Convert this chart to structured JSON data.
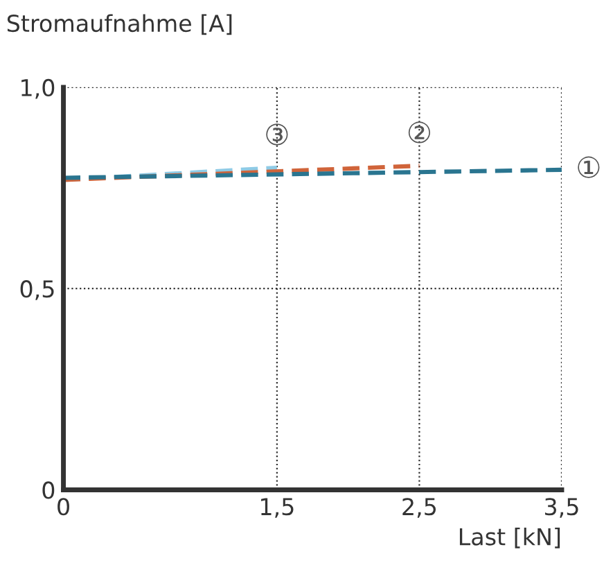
{
  "chart_data": {
    "type": "line",
    "ylabel": "Stromaufnahme [A]",
    "xlabel": "Last [kN]",
    "xlim": [
      0,
      3.5
    ],
    "xticks": [
      {
        "value": 0,
        "label": "0"
      },
      {
        "value": 1.5,
        "label": "1,5"
      },
      {
        "value": 2.5,
        "label": "2,5"
      },
      {
        "value": 3.5,
        "label": "3,5"
      }
    ],
    "ylim": [
      0,
      1.0
    ],
    "yticks": [
      {
        "value": 0,
        "label": "0"
      },
      {
        "value": 0.5,
        "label": "0,5"
      },
      {
        "value": 1.0,
        "label": "1,0"
      }
    ],
    "grid": true,
    "line_style": "dashed",
    "marker": "none",
    "legend": false,
    "series": [
      {
        "name": "①",
        "color": "#2a7590",
        "x": [
          0,
          3.5
        ],
        "values": [
          0.775,
          0.795
        ]
      },
      {
        "name": "②",
        "color": "#d0643a",
        "x": [
          0,
          2.5
        ],
        "values": [
          0.77,
          0.805
        ]
      },
      {
        "name": "③",
        "color": "#8fcbe6",
        "x": [
          0,
          1.5
        ],
        "values": [
          0.77,
          0.8
        ]
      }
    ]
  }
}
